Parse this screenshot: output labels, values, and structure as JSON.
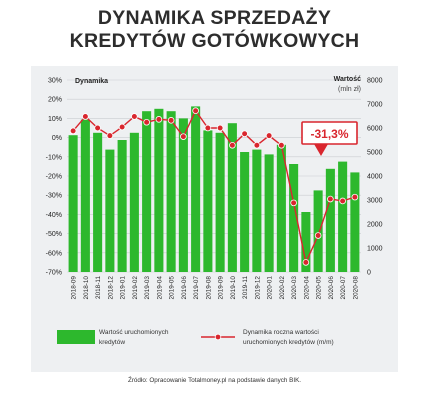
{
  "header": {
    "title_line1": "DYNAMIKA SPRZEDAŻY",
    "title_line2": "KREDYTÓW GOTÓWKOWYCH"
  },
  "source_note": "Źródło: Opracowanie Totalmoney.pl na podstawie danych BIK.",
  "colors": {
    "bar": "#2db82d",
    "line": "#d9262e",
    "callout": "#d9262e",
    "panel": "#eef0f2"
  },
  "chart_data": {
    "type": "bar",
    "left_axis_title": "Dynamika",
    "right_axis_title_line1": "Wartość",
    "right_axis_title_line2": "(mln zł)",
    "left_ticks": [
      "30%",
      "20%",
      "10%",
      "0%",
      "-10%",
      "-20%",
      "-30%",
      "-40%",
      "-50%",
      "-60%",
      "-70%"
    ],
    "right_ticks": [
      "8000",
      "7000",
      "6000",
      "5000",
      "4000",
      "3000",
      "2000",
      "1000",
      "0"
    ],
    "ylim_left": [
      -70,
      30
    ],
    "ylim_right": [
      0,
      8000
    ],
    "categories": [
      "2018-09",
      "2018-10",
      "2018-11",
      "2018-12",
      "2019-01",
      "2019-02",
      "2019-03",
      "2019-04",
      "2019-05",
      "2019-06",
      "2019-07",
      "2019-08",
      "2019-09",
      "2019-10",
      "2019-11",
      "2019-12",
      "2020-01",
      "2020-02",
      "2020-03",
      "2020-04",
      "2020-05",
      "2020-06",
      "2020-07",
      "2020-08"
    ],
    "series": [
      {
        "name": "Wartość uruchomionych kredytów",
        "type": "bar",
        "axis": "right",
        "values": [
          5700,
          6350,
          5800,
          5100,
          5500,
          5800,
          6700,
          6800,
          6700,
          6400,
          6900,
          5900,
          5800,
          6200,
          5000,
          5100,
          4900,
          5300,
          4500,
          2500,
          3400,
          4300,
          4600,
          4150
        ]
      },
      {
        "name": "Dynamika roczna wartości uruchomionych kredytów (m/m)",
        "type": "line",
        "axis": "left",
        "values": [
          3.5,
          11,
          5,
          1,
          5.5,
          11,
          8,
          9.5,
          9,
          0.5,
          14,
          5,
          5,
          -4,
          2,
          -4,
          1,
          -4,
          -34,
          -65,
          -51,
          -32,
          -33,
          -31
        ]
      }
    ],
    "annotation": "-31,3%",
    "legend_position": "bottom",
    "grid": "horizontal"
  }
}
